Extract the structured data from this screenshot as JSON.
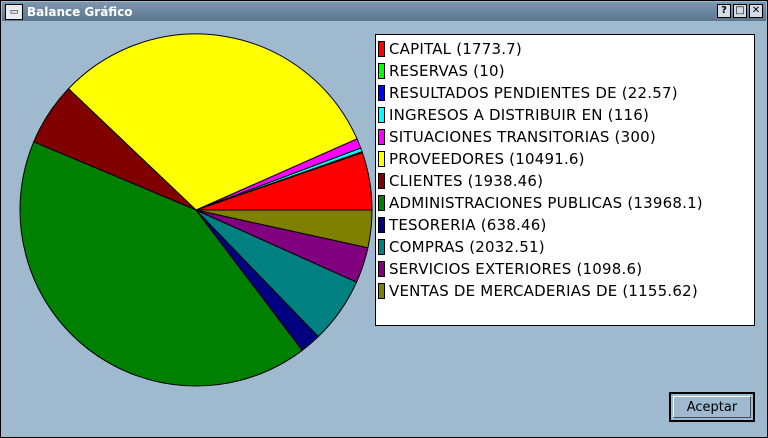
{
  "window": {
    "title": "Balance Gráfico",
    "help_label": "?",
    "maximize_label": "□",
    "close_label": "✕"
  },
  "chart_data": {
    "type": "pie",
    "title": "",
    "categories": [
      "CAPITAL",
      "RESERVAS",
      "RESULTADOS PENDIENTES DE",
      "INGRESOS A DISTRIBUIR EN",
      "SITUACIONES TRANSITORIAS",
      "PROVEEDORES",
      "CLIENTES",
      "ADMINISTRACIONES PUBLICAS",
      "TESORERIA",
      "COMPRAS",
      "SERVICIOS EXTERIORES",
      "VENTAS DE MERCADERIAS DE"
    ],
    "values": [
      1773.7,
      10,
      22.57,
      116,
      300,
      10491.6,
      1938.46,
      13968.1,
      638.46,
      2032.51,
      1098.6,
      1155.62
    ],
    "colors": [
      "#ff0000",
      "#00ff00",
      "#0000ff",
      "#00ffff",
      "#ff00ff",
      "#ffff00",
      "#800000",
      "#008000",
      "#000080",
      "#008080",
      "#800080",
      "#808000"
    ],
    "legend_position": "right"
  },
  "legend": [
    {
      "label": "CAPITAL (1773.7)"
    },
    {
      "label": "RESERVAS (10)"
    },
    {
      "label": "RESULTADOS PENDIENTES DE  (22.57)"
    },
    {
      "label": "INGRESOS A DISTRIBUIR EN  (116)"
    },
    {
      "label": "SITUACIONES TRANSITORIAS  (300)"
    },
    {
      "label": "PROVEEDORES (10491.6)"
    },
    {
      "label": "CLIENTES (1938.46)"
    },
    {
      "label": "ADMINISTRACIONES PUBLICAS (13968.1)"
    },
    {
      "label": "TESORERIA (638.46)"
    },
    {
      "label": "COMPRAS (2032.51)"
    },
    {
      "label": "SERVICIOS EXTERIORES (1098.6)"
    },
    {
      "label": "VENTAS DE MERCADERIAS DE  (1155.62)"
    }
  ],
  "buttons": {
    "accept_label": "Aceptar"
  }
}
